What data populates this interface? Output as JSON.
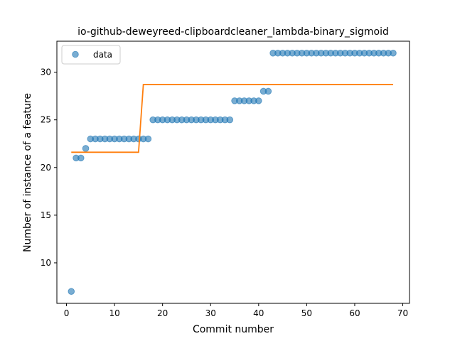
{
  "chart_data": {
    "type": "scatter",
    "title": "io-github-deweyreed-clipboardcleaner_lambda-binary_sigmoid",
    "xlabel": "Commit number",
    "ylabel": "Number of instance of a feature",
    "xlim": [
      -2,
      71.4
    ],
    "ylim": [
      5.75,
      33.25
    ],
    "xticks": [
      0,
      10,
      20,
      30,
      40,
      50,
      60,
      70
    ],
    "yticks": [
      10,
      15,
      20,
      25,
      30
    ],
    "grid": false,
    "legend": {
      "location": "upper-left",
      "entries": [
        "data"
      ]
    },
    "series": [
      {
        "name": "data",
        "kind": "scatter",
        "color": "#1f77b4",
        "x": [
          1,
          2,
          3,
          4,
          5,
          6,
          7,
          8,
          9,
          10,
          11,
          12,
          13,
          14,
          15,
          16,
          17,
          18,
          19,
          20,
          21,
          22,
          23,
          24,
          25,
          26,
          27,
          28,
          29,
          30,
          31,
          32,
          33,
          34,
          35,
          36,
          37,
          38,
          39,
          40,
          41,
          42,
          43,
          44,
          45,
          46,
          47,
          48,
          49,
          50,
          51,
          52,
          53,
          54,
          55,
          56,
          57,
          58,
          59,
          60,
          61,
          62,
          63,
          64,
          65,
          66,
          67,
          68
        ],
        "y": [
          7,
          21,
          21,
          22,
          23,
          23,
          23,
          23,
          23,
          23,
          23,
          23,
          23,
          23,
          23,
          23,
          23,
          25,
          25,
          25,
          25,
          25,
          25,
          25,
          25,
          25,
          25,
          25,
          25,
          25,
          25,
          25,
          25,
          25,
          27,
          27,
          27,
          27,
          27,
          27,
          28,
          28,
          32,
          32,
          32,
          32,
          32,
          32,
          32,
          32,
          32,
          32,
          32,
          32,
          32,
          32,
          32,
          32,
          32,
          32,
          32,
          32,
          32,
          32,
          32,
          32,
          32,
          32
        ]
      },
      {
        "kind": "line",
        "color": "#ff7f0e",
        "x": [
          1,
          15,
          16,
          68
        ],
        "y": [
          21.6,
          21.6,
          28.7,
          28.7
        ]
      }
    ]
  }
}
